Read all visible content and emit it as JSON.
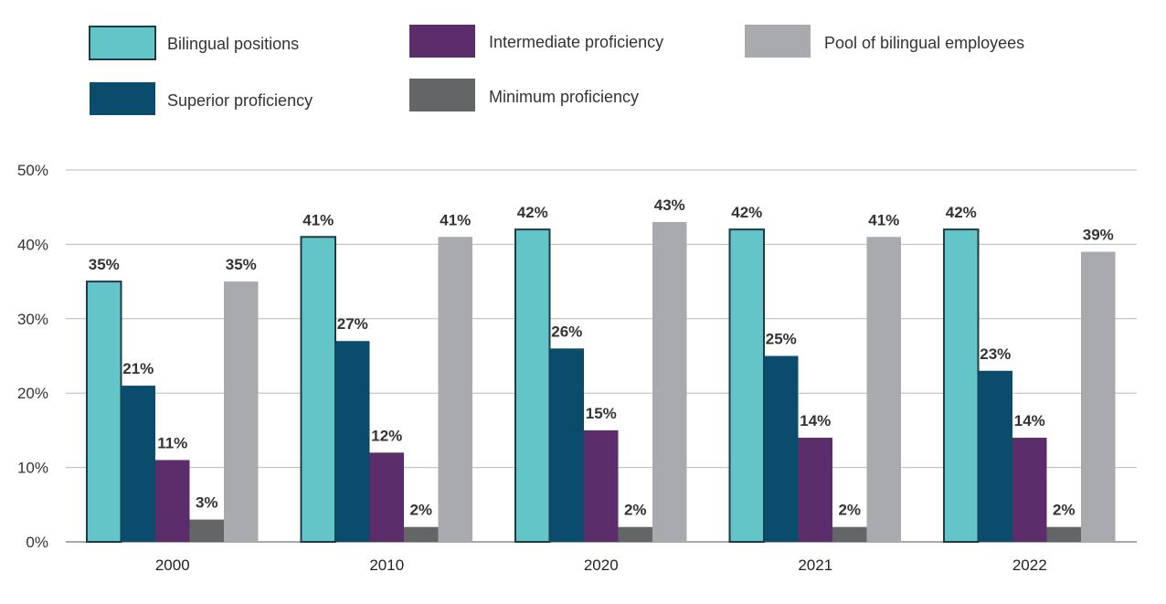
{
  "chart_data": {
    "type": "bar",
    "categories": [
      "2000",
      "2010",
      "2020",
      "2021",
      "2022"
    ],
    "series": [
      {
        "name": "Bilingual positions",
        "color": "#63C5C8",
        "outline": true,
        "values": [
          35,
          41,
          42,
          42,
          42
        ]
      },
      {
        "name": "Superior proficiency",
        "color": "#0B4C6C",
        "outline": false,
        "values": [
          21,
          27,
          26,
          25,
          23
        ]
      },
      {
        "name": "Intermediate proficiency",
        "color": "#5B2E6B",
        "outline": false,
        "values": [
          11,
          12,
          15,
          14,
          14
        ]
      },
      {
        "name": "Minimum proficiency",
        "color": "#646567",
        "outline": false,
        "values": [
          3,
          2,
          2,
          2,
          2
        ]
      },
      {
        "name": "Pool of bilingual employees",
        "color": "#A9AAAD",
        "outline": false,
        "values": [
          35,
          41,
          43,
          41,
          39
        ]
      }
    ],
    "data_labels": [
      [
        "35%",
        "41%",
        "42%",
        "42%",
        "42%"
      ],
      [
        "21%",
        "27%",
        "26%",
        "25%",
        "23%"
      ],
      [
        "11%",
        "12%",
        "15%",
        "14%",
        "14%"
      ],
      [
        "3%",
        "2%",
        "2%",
        "2%",
        "2%"
      ],
      [
        "35%",
        "41%",
        "43%",
        "41%",
        "39%"
      ]
    ],
    "y_ticks": [
      0,
      10,
      20,
      30,
      40,
      50
    ],
    "y_tick_labels": [
      "0%",
      "10%",
      "20%",
      "30%",
      "40%",
      "50%"
    ],
    "ylim": [
      0,
      50
    ],
    "grid": true,
    "legend_position": "top"
  }
}
